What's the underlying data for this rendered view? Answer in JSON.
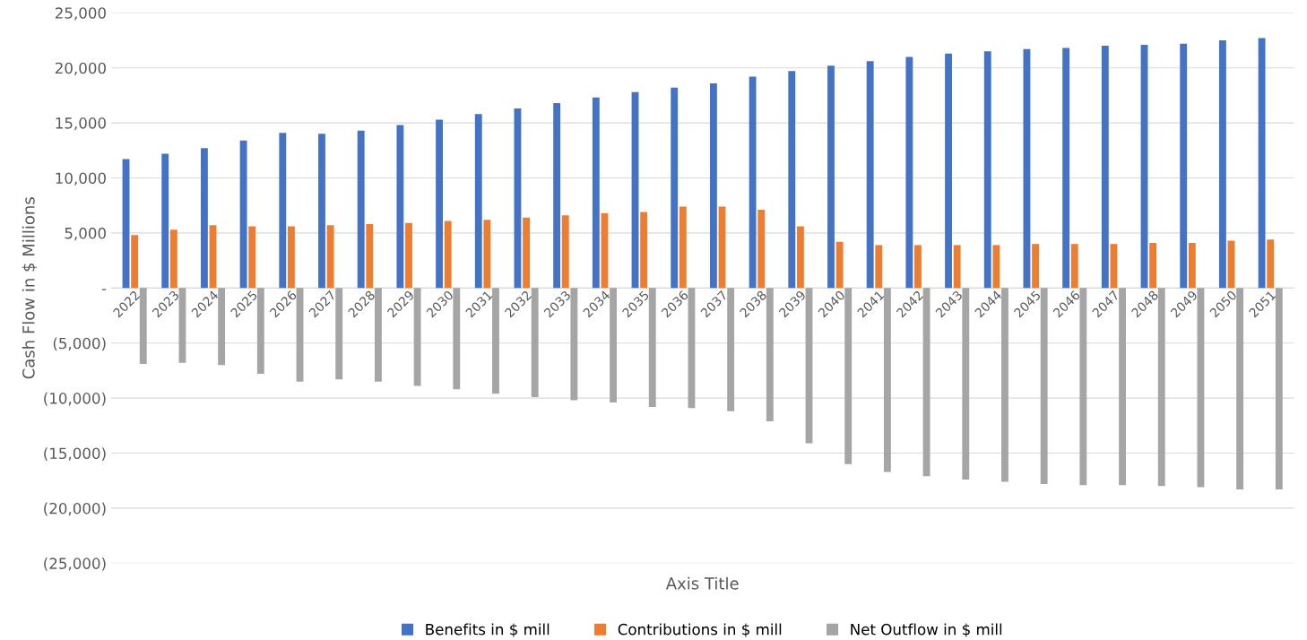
{
  "chart_data": {
    "type": "bar",
    "xlabel": "Axis Title",
    "ylabel": "Cash Flow in $ Millions",
    "categories": [
      "2022",
      "2023",
      "2024",
      "2025",
      "2026",
      "2027",
      "2028",
      "2029",
      "2030",
      "2031",
      "2032",
      "2033",
      "2034",
      "2035",
      "2036",
      "2037",
      "2038",
      "2039",
      "2040",
      "2041",
      "2042",
      "2043",
      "2044",
      "2045",
      "2046",
      "2047",
      "2048",
      "2049",
      "2050",
      "2051"
    ],
    "series": [
      {
        "name": "Benefits in $ mill",
        "color": "#4472c4",
        "values": [
          11700,
          12200,
          12700,
          13400,
          14100,
          14000,
          14300,
          14800,
          15300,
          15800,
          16300,
          16800,
          17300,
          17800,
          18200,
          18600,
          19200,
          19700,
          20200,
          20600,
          21000,
          21300,
          21500,
          21700,
          21800,
          22000,
          22100,
          22200,
          22500,
          22700
        ]
      },
      {
        "name": "Contributions in $ mill",
        "color": "#ed7d31",
        "values": [
          4800,
          5300,
          5700,
          5600,
          5600,
          5700,
          5800,
          5900,
          6100,
          6200,
          6400,
          6600,
          6800,
          6900,
          7400,
          7400,
          7100,
          5600,
          4200,
          3900,
          3900,
          3900,
          3900,
          4000,
          4000,
          4000,
          4100,
          4100,
          4300,
          4400
        ]
      },
      {
        "name": "Net Outflow in $ mill",
        "color": "#a5a5a5",
        "values": [
          -6900,
          -6800,
          -7000,
          -7800,
          -8500,
          -8300,
          -8500,
          -8900,
          -9200,
          -9600,
          -9900,
          -10200,
          -10400,
          -10800,
          -10900,
          -11200,
          -12100,
          -14100,
          -16000,
          -16700,
          -17100,
          -17400,
          -17600,
          -17800,
          -17900,
          -17900,
          -18000,
          -18100,
          -18300,
          -18300
        ]
      }
    ],
    "ylim": [
      -25000,
      25000
    ],
    "yticks": [
      {
        "value": -25000,
        "label": "(25,000)"
      },
      {
        "value": -20000,
        "label": "(20,000)"
      },
      {
        "value": -15000,
        "label": "(15,000)"
      },
      {
        "value": -10000,
        "label": "(10,000)"
      },
      {
        "value": -5000,
        "label": "(5,000)"
      },
      {
        "value": 0,
        "label": "-"
      },
      {
        "value": 5000,
        "label": "5,000"
      },
      {
        "value": 10000,
        "label": "10,000"
      },
      {
        "value": 15000,
        "label": "15,000"
      },
      {
        "value": 20000,
        "label": "20,000"
      },
      {
        "value": 25000,
        "label": "25,000"
      }
    ],
    "grid": "y",
    "legend": "bottom"
  }
}
